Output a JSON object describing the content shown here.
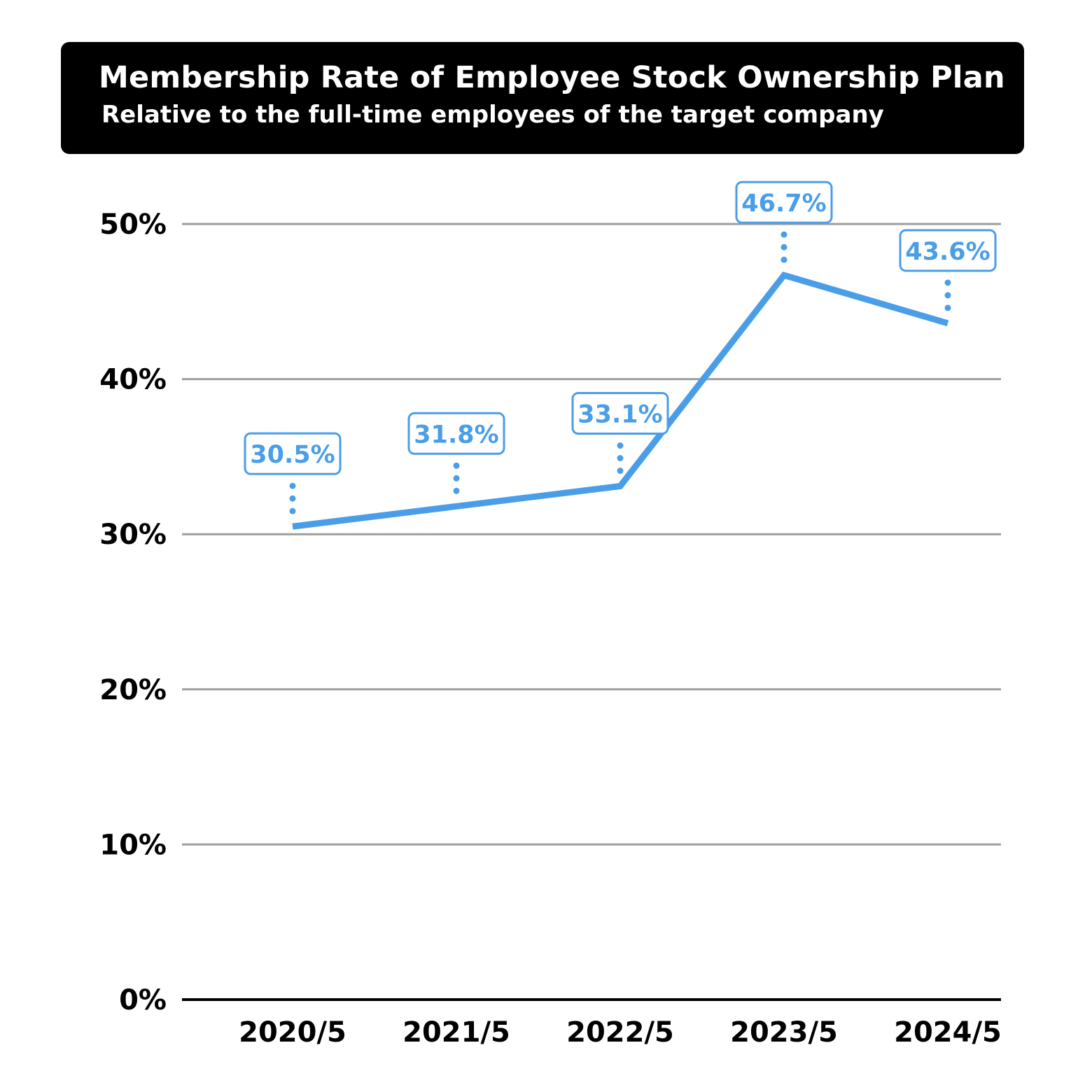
{
  "chart_data": {
    "type": "line",
    "title": "Membership Rate of Employee Stock Ownership Plan",
    "subtitle": "Relative to the full-time employees of the target company",
    "categories": [
      "2020/5",
      "2021/5",
      "2022/5",
      "2023/5",
      "2024/5"
    ],
    "series": [
      {
        "values": [
          30.5,
          31.8,
          33.1,
          46.7,
          43.6
        ],
        "labels": [
          "30.5%",
          "31.8%",
          "33.1%",
          "46.7%",
          "43.6%"
        ],
        "color": "#4a9ee8"
      }
    ],
    "yticks": [
      "0%",
      "10%",
      "20%",
      "30%",
      "40%",
      "50%"
    ],
    "ylim": [
      0,
      50
    ],
    "grid": true,
    "gridColor": "#9e9e9e",
    "axisColor": "#000000",
    "titleBackground": "#000000"
  }
}
